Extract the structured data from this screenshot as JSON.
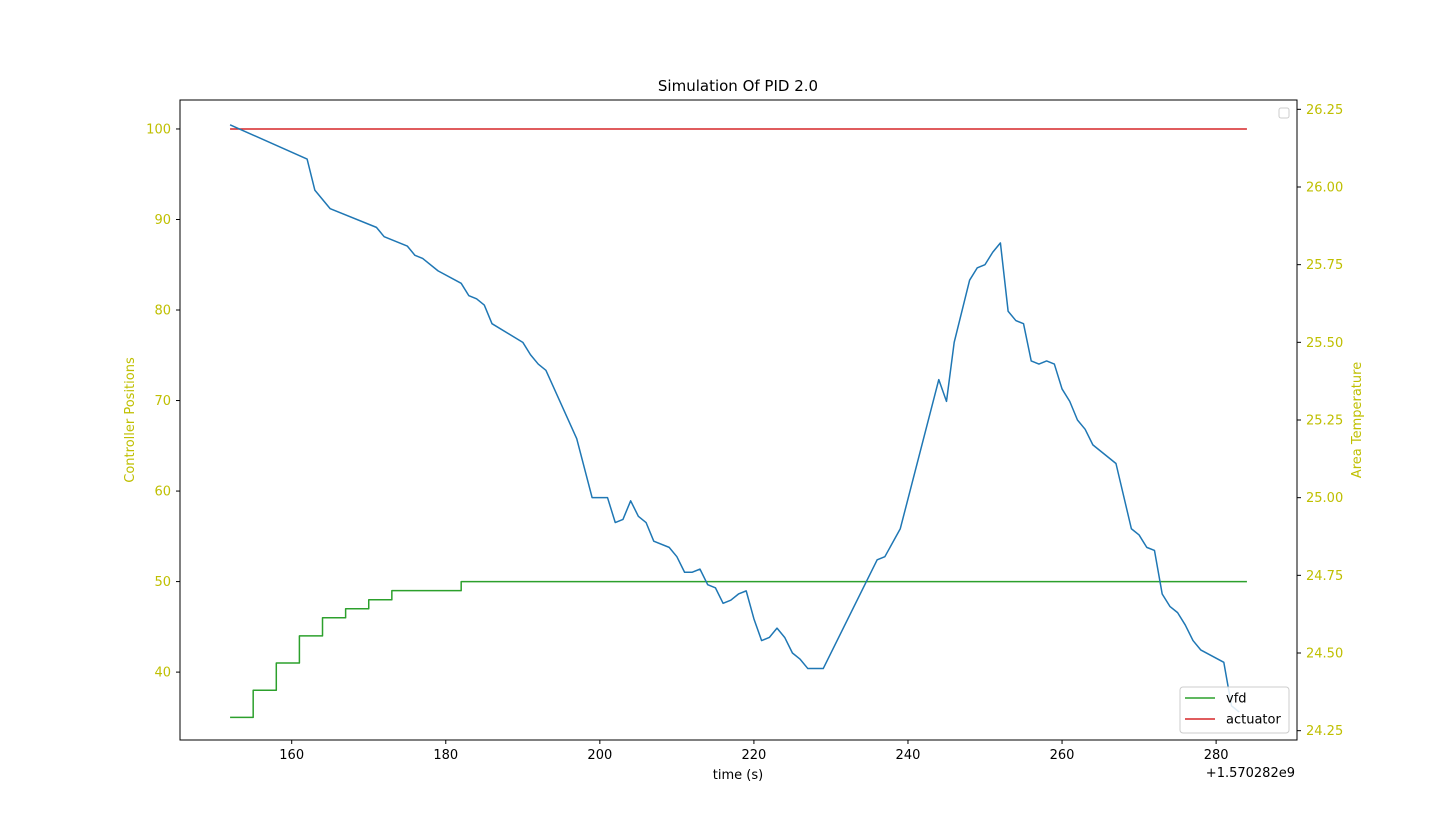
{
  "chart_data": {
    "type": "line",
    "title": "Simulation Of PID 2.0",
    "xlabel": "time (s)",
    "x_offset_label": "+1.570282e9",
    "ylabel_left": "Controller Positions",
    "ylabel_right": "Area Temperature",
    "xlim": [
      145.5,
      290.5
    ],
    "ylim_left": [
      32.5,
      103.2
    ],
    "ylim_right": [
      24.22,
      26.28
    ],
    "x_ticks": [
      160,
      180,
      200,
      220,
      240,
      260,
      280
    ],
    "y_ticks_left": [
      40,
      50,
      60,
      70,
      80,
      90,
      100
    ],
    "y_ticks_right": [
      24.25,
      24.5,
      24.75,
      25.0,
      25.25,
      25.5,
      25.75,
      26.0,
      26.25
    ],
    "y_tick_labels_right": [
      "24.25",
      "24.50",
      "24.75",
      "25.00",
      "25.25",
      "25.50",
      "25.75",
      "26.00",
      "26.25"
    ],
    "grid": false,
    "legend_placement": "lower-right",
    "colors": {
      "axis_labels": "#bfbf00",
      "vfd": "#2ca02c",
      "actuator": "#d62728",
      "temperature": "#1f77b4"
    },
    "series": [
      {
        "name": "vfd",
        "axis": "left",
        "step": true,
        "x": [
          152,
          153,
          154,
          155,
          156,
          157,
          158,
          159,
          160,
          161,
          162,
          163,
          164,
          165,
          166,
          167,
          168,
          169,
          170,
          171,
          172,
          173,
          174,
          175,
          176,
          177,
          178,
          179,
          180,
          181,
          182,
          284
        ],
        "y": [
          35,
          35,
          35,
          38,
          38,
          38,
          41,
          41,
          41,
          44,
          44,
          44,
          46,
          46,
          46,
          47,
          47,
          47,
          48,
          48,
          48,
          49,
          49,
          49,
          49,
          49,
          49,
          49,
          49,
          49,
          50,
          50
        ]
      },
      {
        "name": "actuator",
        "axis": "left",
        "x": [
          152,
          284
        ],
        "y": [
          100,
          100
        ]
      },
      {
        "name": "",
        "axis": "right",
        "x": [
          152,
          162,
          163,
          165,
          171,
          172,
          175,
          176,
          177,
          179,
          182,
          183,
          184,
          185,
          186,
          190,
          191,
          192,
          193,
          197,
          199,
          201,
          202,
          203,
          204,
          205,
          206,
          207,
          209,
          210,
          211,
          212,
          213,
          214,
          215,
          216,
          217,
          218,
          219,
          220,
          221,
          222,
          223,
          224,
          225,
          226,
          227,
          229,
          236,
          237,
          239,
          244,
          245,
          246,
          248,
          249,
          250,
          251,
          252,
          253,
          254,
          255,
          256,
          257,
          258,
          259,
          260,
          261,
          262,
          263,
          264,
          267,
          269,
          270,
          271,
          272,
          273,
          274,
          275,
          276,
          277,
          278,
          281,
          282,
          283
        ],
        "y": [
          26.2,
          26.09,
          25.99,
          25.93,
          25.87,
          25.84,
          25.81,
          25.78,
          25.77,
          25.73,
          25.69,
          25.65,
          25.64,
          25.62,
          25.56,
          25.5,
          25.46,
          25.43,
          25.41,
          25.19,
          25.0,
          25.0,
          24.92,
          24.93,
          24.99,
          24.94,
          24.92,
          24.86,
          24.84,
          24.81,
          24.76,
          24.76,
          24.77,
          24.72,
          24.71,
          24.66,
          24.67,
          24.69,
          24.7,
          24.61,
          24.54,
          24.55,
          24.58,
          24.55,
          24.5,
          24.48,
          24.45,
          24.45,
          24.8,
          24.81,
          24.9,
          25.38,
          25.31,
          25.5,
          25.7,
          25.74,
          25.75,
          25.79,
          25.82,
          25.6,
          25.57,
          25.56,
          25.44,
          25.43,
          25.44,
          25.43,
          25.35,
          25.31,
          25.25,
          25.22,
          25.17,
          25.11,
          24.9,
          24.88,
          24.84,
          24.83,
          24.69,
          24.65,
          24.63,
          24.59,
          24.54,
          24.51,
          24.47,
          24.33,
          24.31
        ]
      }
    ]
  }
}
